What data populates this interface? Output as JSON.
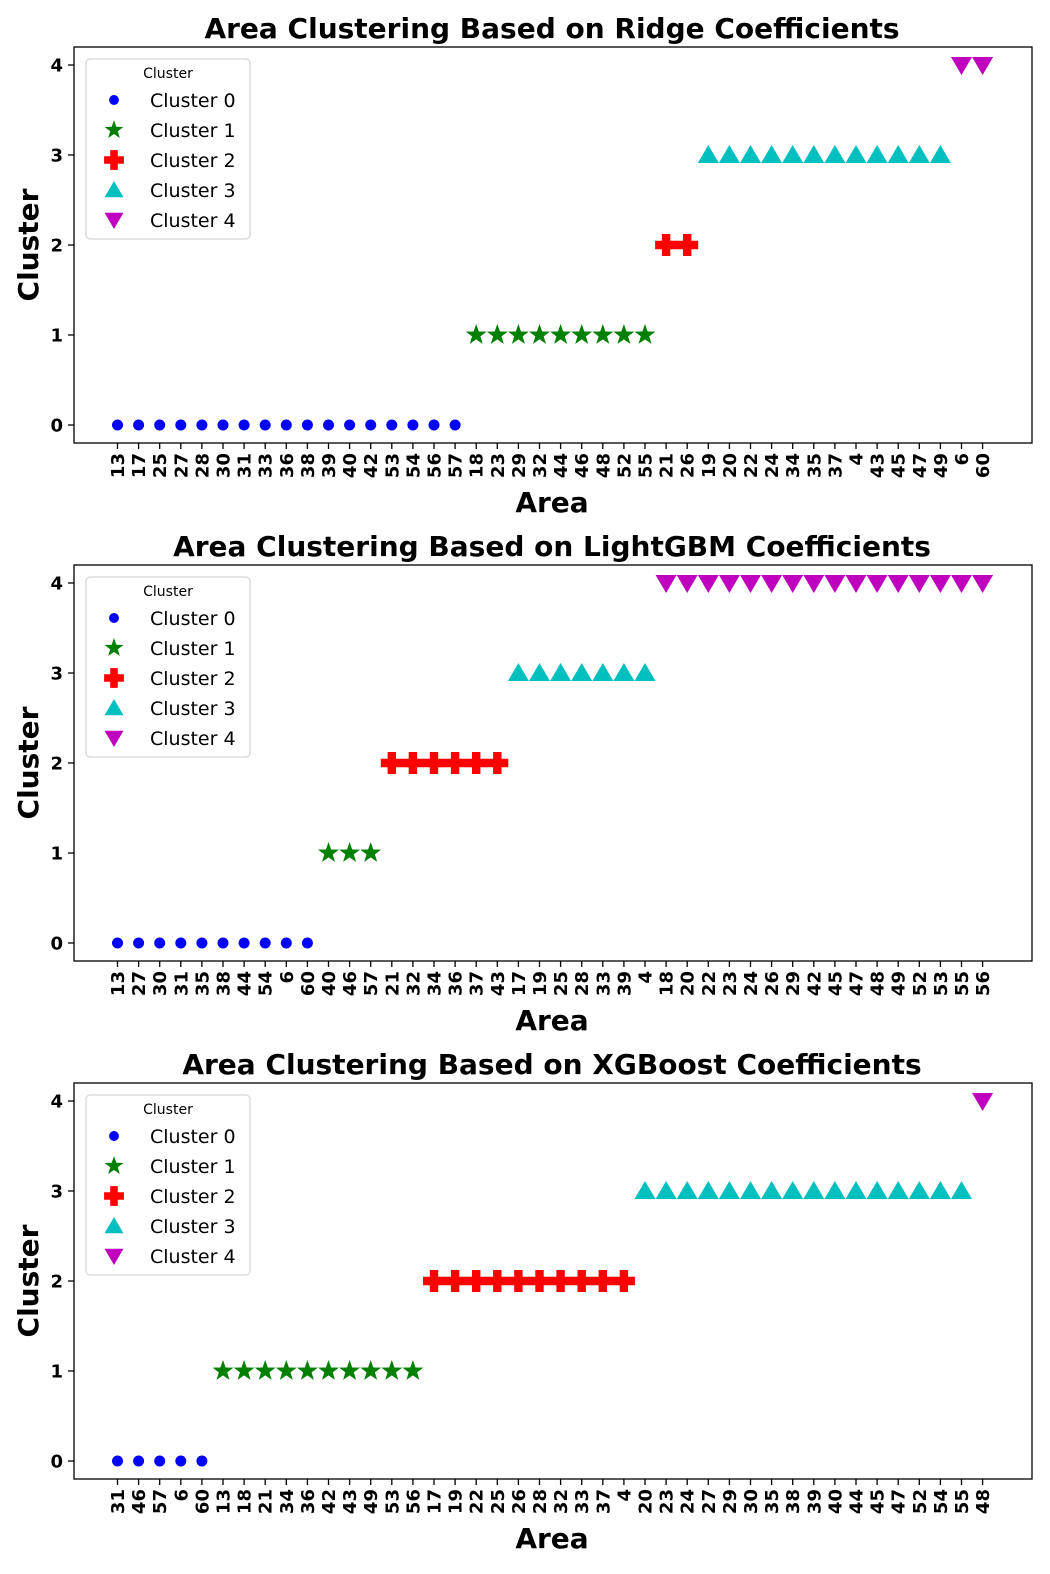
{
  "legend": {
    "title": "Cluster",
    "labels": [
      "Cluster 0",
      "Cluster 1",
      "Cluster 2",
      "Cluster 3",
      "Cluster 4"
    ],
    "placement": "top-left"
  },
  "styles": {
    "colors": [
      "#0000ff",
      "#008000",
      "#ff0000",
      "#00bfbf",
      "#bf00bf"
    ],
    "markers": [
      "circle",
      "star",
      "plus",
      "triangle-up",
      "triangle-down"
    ]
  },
  "chart_data": [
    {
      "type": "scatter",
      "title": "Area Clustering Based on Ridge Coefficients",
      "xlabel": "Area",
      "ylabel": "Cluster",
      "ylim": [
        -0.2,
        4.2
      ],
      "yticks": [
        0,
        1,
        2,
        3,
        4
      ],
      "categories": [
        "13",
        "17",
        "25",
        "27",
        "28",
        "30",
        "31",
        "33",
        "36",
        "38",
        "39",
        "40",
        "42",
        "53",
        "54",
        "56",
        "57",
        "18",
        "23",
        "29",
        "32",
        "44",
        "46",
        "48",
        "52",
        "55",
        "21",
        "26",
        "19",
        "20",
        "22",
        "24",
        "34",
        "35",
        "37",
        "4",
        "43",
        "45",
        "47",
        "49",
        "6",
        "60"
      ],
      "clusters": [
        0,
        0,
        0,
        0,
        0,
        0,
        0,
        0,
        0,
        0,
        0,
        0,
        0,
        0,
        0,
        0,
        0,
        1,
        1,
        1,
        1,
        1,
        1,
        1,
        1,
        1,
        2,
        2,
        3,
        3,
        3,
        3,
        3,
        3,
        3,
        3,
        3,
        3,
        3,
        3,
        4,
        4
      ]
    },
    {
      "type": "scatter",
      "title": "Area Clustering Based on LightGBM Coefficients",
      "xlabel": "Area",
      "ylabel": "Cluster",
      "ylim": [
        -0.2,
        4.2
      ],
      "yticks": [
        0,
        1,
        2,
        3,
        4
      ],
      "categories": [
        "13",
        "27",
        "30",
        "31",
        "35",
        "38",
        "44",
        "54",
        "6",
        "60",
        "40",
        "46",
        "57",
        "21",
        "32",
        "34",
        "36",
        "37",
        "43",
        "17",
        "19",
        "25",
        "28",
        "33",
        "39",
        "4",
        "18",
        "20",
        "22",
        "23",
        "24",
        "26",
        "29",
        "42",
        "45",
        "47",
        "48",
        "49",
        "52",
        "53",
        "55",
        "56"
      ],
      "clusters": [
        0,
        0,
        0,
        0,
        0,
        0,
        0,
        0,
        0,
        0,
        1,
        1,
        1,
        2,
        2,
        2,
        2,
        2,
        2,
        3,
        3,
        3,
        3,
        3,
        3,
        3,
        4,
        4,
        4,
        4,
        4,
        4,
        4,
        4,
        4,
        4,
        4,
        4,
        4,
        4,
        4,
        4
      ]
    },
    {
      "type": "scatter",
      "title": "Area Clustering Based on XGBoost Coefficients",
      "xlabel": "Area",
      "ylabel": "Cluster",
      "ylim": [
        -0.2,
        4.2
      ],
      "yticks": [
        0,
        1,
        2,
        3,
        4
      ],
      "categories": [
        "31",
        "46",
        "57",
        "6",
        "60",
        "13",
        "18",
        "21",
        "34",
        "36",
        "42",
        "43",
        "49",
        "53",
        "56",
        "17",
        "19",
        "22",
        "25",
        "26",
        "28",
        "32",
        "33",
        "37",
        "4",
        "20",
        "23",
        "24",
        "27",
        "29",
        "30",
        "35",
        "38",
        "39",
        "40",
        "44",
        "45",
        "47",
        "52",
        "54",
        "55",
        "48"
      ],
      "clusters": [
        0,
        0,
        0,
        0,
        0,
        1,
        1,
        1,
        1,
        1,
        1,
        1,
        1,
        1,
        1,
        2,
        2,
        2,
        2,
        2,
        2,
        2,
        2,
        2,
        2,
        3,
        3,
        3,
        3,
        3,
        3,
        3,
        3,
        3,
        3,
        3,
        3,
        3,
        3,
        3,
        3,
        4
      ]
    }
  ]
}
